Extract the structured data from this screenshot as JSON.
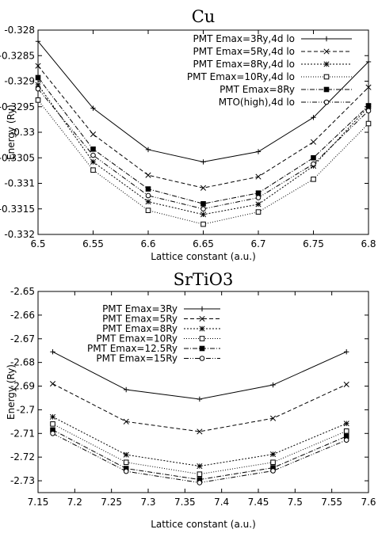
{
  "chart_data": [
    {
      "type": "line",
      "title": "Cu",
      "xlabel": "Lattice constant (a.u.)",
      "ylabel": "Energy (Ry)",
      "xlim": [
        6.5,
        6.8
      ],
      "ylim": [
        -0.332,
        -0.328
      ],
      "xticks": [
        "6.5",
        "6.55",
        "6.6",
        "6.65",
        "6.7",
        "6.75",
        "6.8"
      ],
      "yticks": [
        "-0.328",
        "-0.3285",
        "-0.329",
        "-0.3295",
        "-0.33",
        "-0.3305",
        "-0.331",
        "-0.3315",
        "-0.332"
      ],
      "grid": false,
      "legend_position": "top-right",
      "x": [
        6.5,
        6.55,
        6.6,
        6.65,
        6.7,
        6.75,
        6.8
      ],
      "series": [
        {
          "name": "PMT Emax=3Ry,4d lo",
          "values": [
            -0.32822,
            -0.32953,
            -0.33034,
            -0.33058,
            -0.33038,
            -0.32971,
            -0.32862
          ],
          "marker": "plus",
          "dash": "solid"
        },
        {
          "name": "PMT Emax=5Ry,4d lo",
          "values": [
            -0.3287,
            -0.33004,
            -0.33084,
            -0.33109,
            -0.33087,
            -0.33019,
            -0.32912
          ],
          "marker": "x",
          "dash": "dashed"
        },
        {
          "name": "PMT Emax=8Ry,4d lo",
          "values": [
            -0.32907,
            -0.33058,
            -0.33136,
            -0.33161,
            -0.33141,
            -0.33066,
            -0.3295
          ],
          "marker": "star",
          "dash": "dotted"
        },
        {
          "name": "PMT Emax=10Ry,4d lo",
          "values": [
            -0.32937,
            -0.33074,
            -0.33153,
            -0.3318,
            -0.33156,
            -0.33092,
            -0.32983
          ],
          "marker": "square-open",
          "dash": "fine-dotted"
        },
        {
          "name": "PMT Emax=8Ry",
          "values": [
            -0.32893,
            -0.33033,
            -0.33111,
            -0.3314,
            -0.33119,
            -0.3305,
            -0.32948
          ],
          "marker": "square-filled",
          "dash": "dash-dot"
        },
        {
          "name": "MTO(high),4d lo",
          "values": [
            -0.32915,
            -0.33045,
            -0.33124,
            -0.3315,
            -0.33128,
            -0.33062,
            -0.32958
          ],
          "marker": "circle-open",
          "dash": "dash-dot-dot"
        }
      ]
    },
    {
      "type": "line",
      "title": "SrTiO3",
      "xlabel": "Lattice constant (a.u.)",
      "ylabel": "Energy (Ry)",
      "xlim": [
        7.15,
        7.6
      ],
      "ylim": [
        -2.735,
        -2.65
      ],
      "xticks": [
        "7.15",
        "7.2",
        "7.25",
        "7.3",
        "7.35",
        "7.4",
        "7.45",
        "7.5",
        "7.55",
        "7.6"
      ],
      "yticks": [
        "-2.65",
        "-2.66",
        "-2.67",
        "-2.68",
        "-2.69",
        "-2.7",
        "-2.71",
        "-2.72",
        "-2.73"
      ],
      "grid": false,
      "legend_position": "top-left",
      "x": [
        7.17,
        7.27,
        7.37,
        7.47,
        7.57
      ],
      "series": [
        {
          "name": "PMT Emax=3Ry",
          "values": [
            -2.6755,
            -2.6915,
            -2.6955,
            -2.6895,
            -2.6755
          ],
          "marker": "plus",
          "dash": "solid"
        },
        {
          "name": "PMT Emax=5Ry",
          "values": [
            -2.689,
            -2.705,
            -2.7092,
            -2.7036,
            -2.6893
          ],
          "marker": "x",
          "dash": "dashed"
        },
        {
          "name": "PMT Emax=8Ry",
          "values": [
            -2.703,
            -2.719,
            -2.7238,
            -2.7188,
            -2.7058
          ],
          "marker": "star",
          "dash": "dotted"
        },
        {
          "name": "PMT Emax=10Ry",
          "values": [
            -2.706,
            -2.7222,
            -2.7272,
            -2.7222,
            -2.709
          ],
          "marker": "square-open",
          "dash": "fine-dotted"
        },
        {
          "name": "PMT Emax=12.5Ry",
          "values": [
            -2.7085,
            -2.7248,
            -2.7295,
            -2.7245,
            -2.7112
          ],
          "marker": "square-filled",
          "dash": "dash-dot"
        },
        {
          "name": "PMT Emax=15Ry",
          "values": [
            -2.71,
            -2.726,
            -2.7308,
            -2.7258,
            -2.7128
          ],
          "marker": "circle-open",
          "dash": "dash-dot-dot"
        }
      ]
    }
  ]
}
